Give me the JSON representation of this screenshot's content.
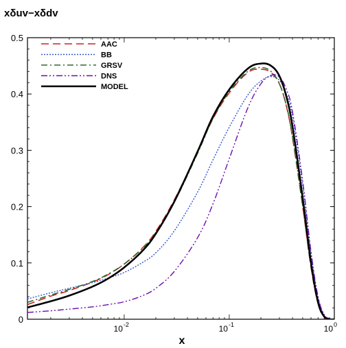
{
  "chart_data": {
    "type": "line",
    "title": "xδuv−xδdv",
    "xlabel": "x",
    "ylabel": "",
    "x_scale": "log",
    "xlim": [
      0.0012,
      1.0
    ],
    "ylim": [
      0,
      0.5
    ],
    "x_ticks": [
      {
        "value": 0.01,
        "base": "10",
        "exp": "-2"
      },
      {
        "value": 0.1,
        "base": "10",
        "exp": "-1"
      },
      {
        "value": 1.0,
        "base": "10",
        "exp": "0"
      }
    ],
    "y_ticks": [
      {
        "value": 0,
        "label": "0"
      },
      {
        "value": 0.1,
        "label": "0.1"
      },
      {
        "value": 0.2,
        "label": "0.2"
      },
      {
        "value": 0.3,
        "label": "0.3"
      },
      {
        "value": 0.4,
        "label": "0.4"
      },
      {
        "value": 0.5,
        "label": "0.5"
      }
    ],
    "legend_position": "top-left",
    "grid": false,
    "x": [
      0.0012,
      0.002,
      0.003,
      0.005,
      0.007,
      0.01,
      0.015,
      0.02,
      0.03,
      0.05,
      0.07,
      0.1,
      0.15,
      0.2,
      0.25,
      0.3,
      0.35,
      0.4,
      0.5,
      0.6,
      0.7,
      0.8,
      0.9,
      1.0
    ],
    "series": [
      {
        "name": "AAC",
        "color": "#cc2222",
        "dash": "11 6",
        "width": 1.6,
        "values": [
          0.026,
          0.041,
          0.051,
          0.066,
          0.079,
          0.098,
          0.127,
          0.156,
          0.212,
          0.297,
          0.356,
          0.402,
          0.438,
          0.444,
          0.438,
          0.418,
          0.378,
          0.322,
          0.2,
          0.092,
          0.028,
          0.004,
          0.0,
          0.0
        ]
      },
      {
        "name": "BB",
        "color": "#3355cc",
        "dash": "2 2",
        "width": 1.4,
        "values": [
          0.036,
          0.047,
          0.055,
          0.065,
          0.073,
          0.083,
          0.101,
          0.118,
          0.157,
          0.226,
          0.283,
          0.341,
          0.398,
          0.423,
          0.431,
          0.424,
          0.4,
          0.36,
          0.238,
          0.116,
          0.039,
          0.008,
          0.001,
          0.0
        ]
      },
      {
        "name": "GRSV",
        "color": "#2a6a2a",
        "dash": "9 4 2 4",
        "width": 1.6,
        "values": [
          0.03,
          0.043,
          0.053,
          0.067,
          0.08,
          0.098,
          0.126,
          0.154,
          0.208,
          0.295,
          0.357,
          0.404,
          0.44,
          0.447,
          0.44,
          0.418,
          0.379,
          0.324,
          0.201,
          0.093,
          0.028,
          0.004,
          0.0,
          0.0
        ]
      },
      {
        "name": "DNS",
        "color": "#6a0dad",
        "dash": "9 3 2 3 2 3",
        "width": 1.4,
        "values": [
          0.012,
          0.015,
          0.018,
          0.022,
          0.026,
          0.031,
          0.042,
          0.055,
          0.085,
          0.145,
          0.205,
          0.285,
          0.375,
          0.418,
          0.433,
          0.43,
          0.408,
          0.368,
          0.245,
          0.12,
          0.04,
          0.008,
          0.001,
          0.0
        ]
      },
      {
        "name": "MODEL",
        "color": "#000000",
        "dash": "",
        "width": 2.6,
        "values": [
          0.021,
          0.032,
          0.042,
          0.058,
          0.072,
          0.092,
          0.122,
          0.152,
          0.209,
          0.298,
          0.36,
          0.408,
          0.445,
          0.454,
          0.45,
          0.432,
          0.395,
          0.342,
          0.215,
          0.1,
          0.03,
          0.005,
          0.0,
          0.0
        ]
      }
    ]
  }
}
